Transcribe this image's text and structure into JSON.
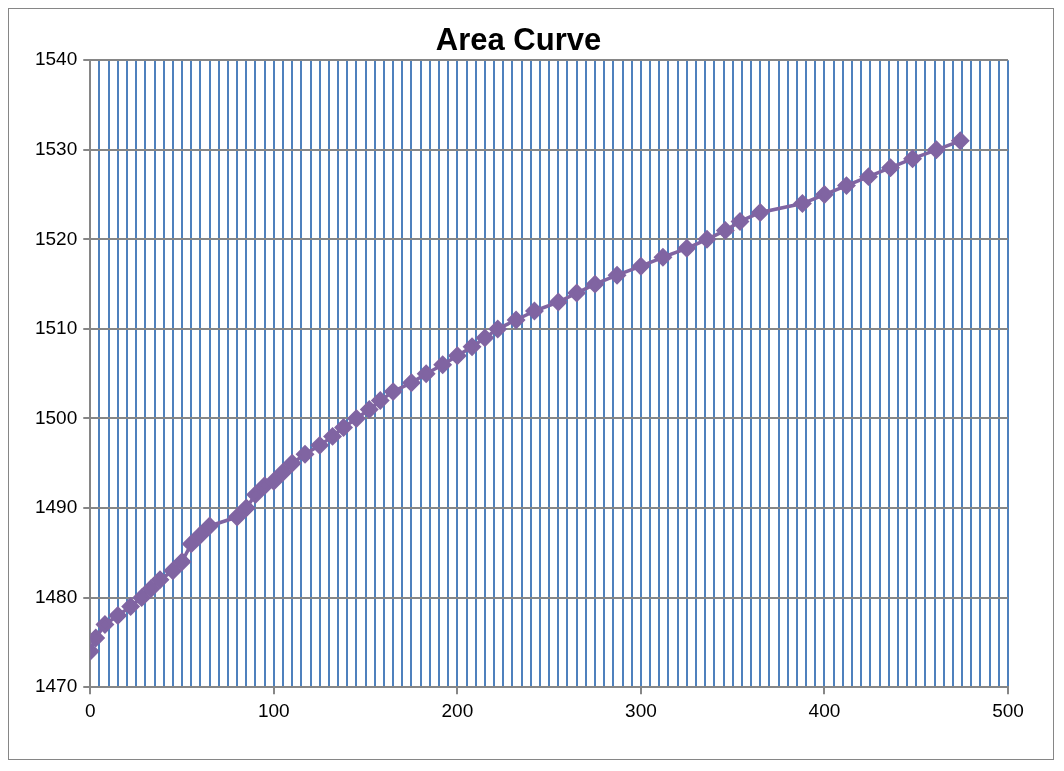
{
  "chart_data": {
    "type": "line",
    "title": "Area Curve",
    "series": [
      {
        "color": "#8064a2",
        "x": [
          0,
          3,
          8,
          15,
          22,
          28,
          33,
          38,
          45,
          50,
          55,
          60,
          65,
          80,
          85,
          90,
          95,
          100,
          105,
          110,
          117,
          125,
          132,
          138,
          145,
          152,
          158,
          165,
          175,
          183,
          192,
          200,
          208,
          215,
          222,
          232,
          242,
          255,
          265,
          275,
          287,
          300,
          312,
          325,
          336,
          346,
          354,
          365,
          388,
          400,
          412,
          424,
          436,
          448,
          461,
          474
        ],
        "values": [
          1474,
          1475.5,
          1477,
          1478,
          1479,
          1480,
          1481,
          1482,
          1483,
          1484,
          1486,
          1487,
          1488,
          1489,
          1490,
          1491.5,
          1492.5,
          1493,
          1494,
          1495,
          1496,
          1497,
          1498,
          1499,
          1500,
          1501,
          1502,
          1503,
          1504,
          1505,
          1506,
          1507,
          1508,
          1509,
          1510,
          1511,
          1512,
          1513,
          1514,
          1515,
          1516,
          1517,
          1518,
          1519,
          1520,
          1521,
          1522,
          1523,
          1524,
          1525,
          1526,
          1527,
          1528,
          1529,
          1530,
          1531
        ]
      }
    ],
    "xlim": [
      0,
      500
    ],
    "ylim": [
      1470,
      1540
    ],
    "xticks": [
      0,
      {
        "value": 5,
        "label": null
      },
      {
        "value": 10,
        "label": null
      },
      {
        "value": 15,
        "label": null
      },
      {
        "value": 20,
        "label": null
      },
      {
        "value": 25,
        "label": null
      },
      {
        "value": 30,
        "label": null
      },
      {
        "value": 35,
        "label": null
      },
      {
        "value": 40,
        "label": null
      },
      {
        "value": 45,
        "label": null
      },
      {
        "value": 50,
        "label": null
      },
      {
        "value": 55,
        "label": null
      },
      {
        "value": 60,
        "label": null
      },
      {
        "value": 65,
        "label": null
      },
      {
        "value": 70,
        "label": null
      },
      {
        "value": 75,
        "label": null
      },
      {
        "value": 80,
        "label": null
      },
      {
        "value": 85,
        "label": null
      },
      {
        "value": 90,
        "label": null
      },
      {
        "value": 95,
        "label": null
      },
      100,
      {
        "value": 105,
        "label": null
      },
      {
        "value": 110,
        "label": null
      },
      {
        "value": 115,
        "label": null
      },
      {
        "value": 120,
        "label": null
      },
      {
        "value": 125,
        "label": null
      },
      {
        "value": 130,
        "label": null
      },
      {
        "value": 135,
        "label": null
      },
      {
        "value": 140,
        "label": null
      },
      {
        "value": 145,
        "label": null
      },
      {
        "value": 150,
        "label": null
      },
      {
        "value": 155,
        "label": null
      },
      {
        "value": 160,
        "label": null
      },
      {
        "value": 165,
        "label": null
      },
      {
        "value": 170,
        "label": null
      },
      {
        "value": 175,
        "label": null
      },
      {
        "value": 180,
        "label": null
      },
      {
        "value": 185,
        "label": null
      },
      {
        "value": 190,
        "label": null
      },
      {
        "value": 195,
        "label": null
      },
      200,
      {
        "value": 205,
        "label": null
      },
      {
        "value": 210,
        "label": null
      },
      {
        "value": 215,
        "label": null
      },
      {
        "value": 220,
        "label": null
      },
      {
        "value": 225,
        "label": null
      },
      {
        "value": 230,
        "label": null
      },
      {
        "value": 235,
        "label": null
      },
      {
        "value": 240,
        "label": null
      },
      {
        "value": 245,
        "label": null
      },
      {
        "value": 250,
        "label": null
      },
      {
        "value": 255,
        "label": null
      },
      {
        "value": 260,
        "label": null
      },
      {
        "value": 265,
        "label": null
      },
      {
        "value": 270,
        "label": null
      },
      {
        "value": 275,
        "label": null
      },
      {
        "value": 280,
        "label": null
      },
      {
        "value": 285,
        "label": null
      },
      {
        "value": 290,
        "label": null
      },
      {
        "value": 295,
        "label": null
      },
      300,
      {
        "value": 305,
        "label": null
      },
      {
        "value": 310,
        "label": null
      },
      {
        "value": 315,
        "label": null
      },
      {
        "value": 320,
        "label": null
      },
      {
        "value": 325,
        "label": null
      },
      {
        "value": 330,
        "label": null
      },
      {
        "value": 335,
        "label": null
      },
      {
        "value": 340,
        "label": null
      },
      {
        "value": 345,
        "label": null
      },
      {
        "value": 350,
        "label": null
      },
      {
        "value": 355,
        "label": null
      },
      {
        "value": 360,
        "label": null
      },
      {
        "value": 365,
        "label": null
      },
      {
        "value": 370,
        "label": null
      },
      {
        "value": 375,
        "label": null
      },
      {
        "value": 380,
        "label": null
      },
      {
        "value": 385,
        "label": null
      },
      {
        "value": 390,
        "label": null
      },
      {
        "value": 395,
        "label": null
      },
      400,
      {
        "value": 405,
        "label": null
      },
      {
        "value": 410,
        "label": null
      },
      {
        "value": 415,
        "label": null
      },
      {
        "value": 420,
        "label": null
      },
      {
        "value": 425,
        "label": null
      },
      {
        "value": 430,
        "label": null
      },
      {
        "value": 435,
        "label": null
      },
      {
        "value": 440,
        "label": null
      },
      {
        "value": 445,
        "label": null
      },
      {
        "value": 450,
        "label": null
      },
      {
        "value": 455,
        "label": null
      },
      {
        "value": 460,
        "label": null
      },
      {
        "value": 465,
        "label": null
      },
      {
        "value": 470,
        "label": null
      },
      {
        "value": 475,
        "label": null
      },
      {
        "value": 480,
        "label": null
      },
      {
        "value": 485,
        "label": null
      },
      {
        "value": 490,
        "label": null
      },
      {
        "value": 495,
        "label": null
      },
      500
    ],
    "yticks": [
      1470,
      1480,
      1490,
      1500,
      1510,
      1520,
      1530,
      1540
    ],
    "grid": true,
    "marker": "diamond",
    "line_style": "solid"
  }
}
